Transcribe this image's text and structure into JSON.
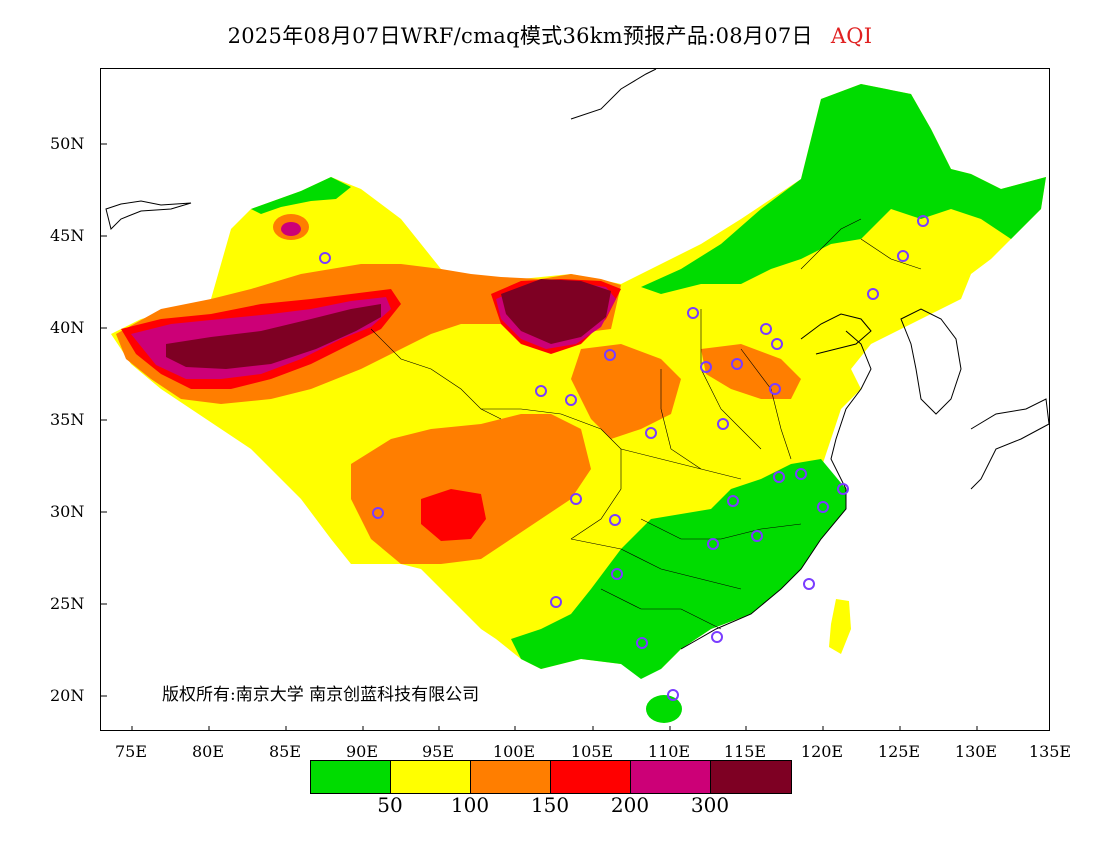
{
  "title": {
    "main": "2025年08月07日WRF/cmaq模式36km预报产品:08月07日",
    "variable": "AQI"
  },
  "axes": {
    "lat_labels": [
      "50N",
      "45N",
      "40N",
      "35N",
      "30N",
      "25N",
      "20N"
    ],
    "lon_labels": [
      "75E",
      "80E",
      "85E",
      "90E",
      "95E",
      "100E",
      "105E",
      "110E",
      "115E",
      "120E",
      "125E",
      "130E",
      "135E"
    ]
  },
  "copyright": "版权所有:南京大学 南京创蓝科技有限公司",
  "legend": {
    "colors": [
      "#00dc00",
      "#ffff00",
      "#ff7e00",
      "#ff0000",
      "#cc0077",
      "#7e0023"
    ],
    "labels": [
      "50",
      "100",
      "150",
      "200",
      "300"
    ]
  },
  "colors": {
    "green": "#00dc00",
    "yellow": "#ffff00",
    "orange": "#ff7e00",
    "red": "#ff0000",
    "purple": "#cc0077",
    "maroon": "#7e0023",
    "station_marker": "#7a3cff"
  }
}
